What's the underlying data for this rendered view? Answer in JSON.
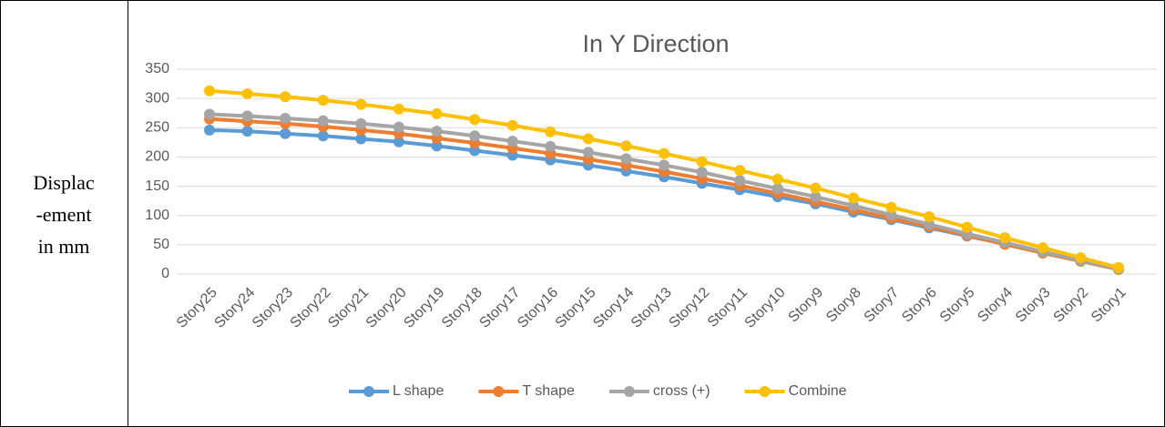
{
  "chart_data": {
    "type": "line",
    "title": "In Y Direction",
    "ylabel_lines": [
      "Displac",
      "-ement",
      "in mm"
    ],
    "categories": [
      "Story25",
      "Story24",
      "Story23",
      "Story22",
      "Story21",
      "Story20",
      "Story19",
      "Story18",
      "Story17",
      "Story16",
      "Story15",
      "Story14",
      "Story13",
      "Story12",
      "Story11",
      "Story10",
      "Story9",
      "Story8",
      "Story7",
      "Story6",
      "Story5",
      "Story4",
      "Story3",
      "Story2",
      "Story1"
    ],
    "series": [
      {
        "name": "L shape",
        "color": "#5b9bd5",
        "values": [
          246,
          244,
          240,
          236,
          231,
          226,
          219,
          211,
          203,
          195,
          186,
          176,
          166,
          155,
          144,
          132,
          120,
          106,
          93,
          79,
          65,
          51,
          36,
          22,
          8
        ]
      },
      {
        "name": "T shape",
        "color": "#ed7d31",
        "values": [
          265,
          261,
          257,
          252,
          246,
          240,
          232,
          224,
          215,
          206,
          196,
          186,
          175,
          163,
          151,
          138,
          124,
          110,
          95,
          81,
          66,
          51,
          36,
          22,
          8
        ]
      },
      {
        "name": "cross (+)",
        "color": "#a5a5a5",
        "values": [
          273,
          270,
          266,
          262,
          257,
          251,
          244,
          236,
          227,
          218,
          208,
          197,
          186,
          174,
          160,
          146,
          132,
          117,
          101,
          85,
          69,
          54,
          38,
          23,
          9
        ]
      },
      {
        "name": "Combine",
        "color": "#ffc000",
        "values": [
          313,
          308,
          303,
          297,
          290,
          282,
          274,
          264,
          254,
          243,
          231,
          219,
          206,
          192,
          177,
          162,
          147,
          130,
          114,
          98,
          80,
          62,
          45,
          28,
          11
        ]
      }
    ],
    "ylim": [
      0,
      350
    ],
    "yticks": [
      0,
      50,
      100,
      150,
      200,
      250,
      300,
      350
    ],
    "grid": true,
    "legend": "bottom"
  }
}
